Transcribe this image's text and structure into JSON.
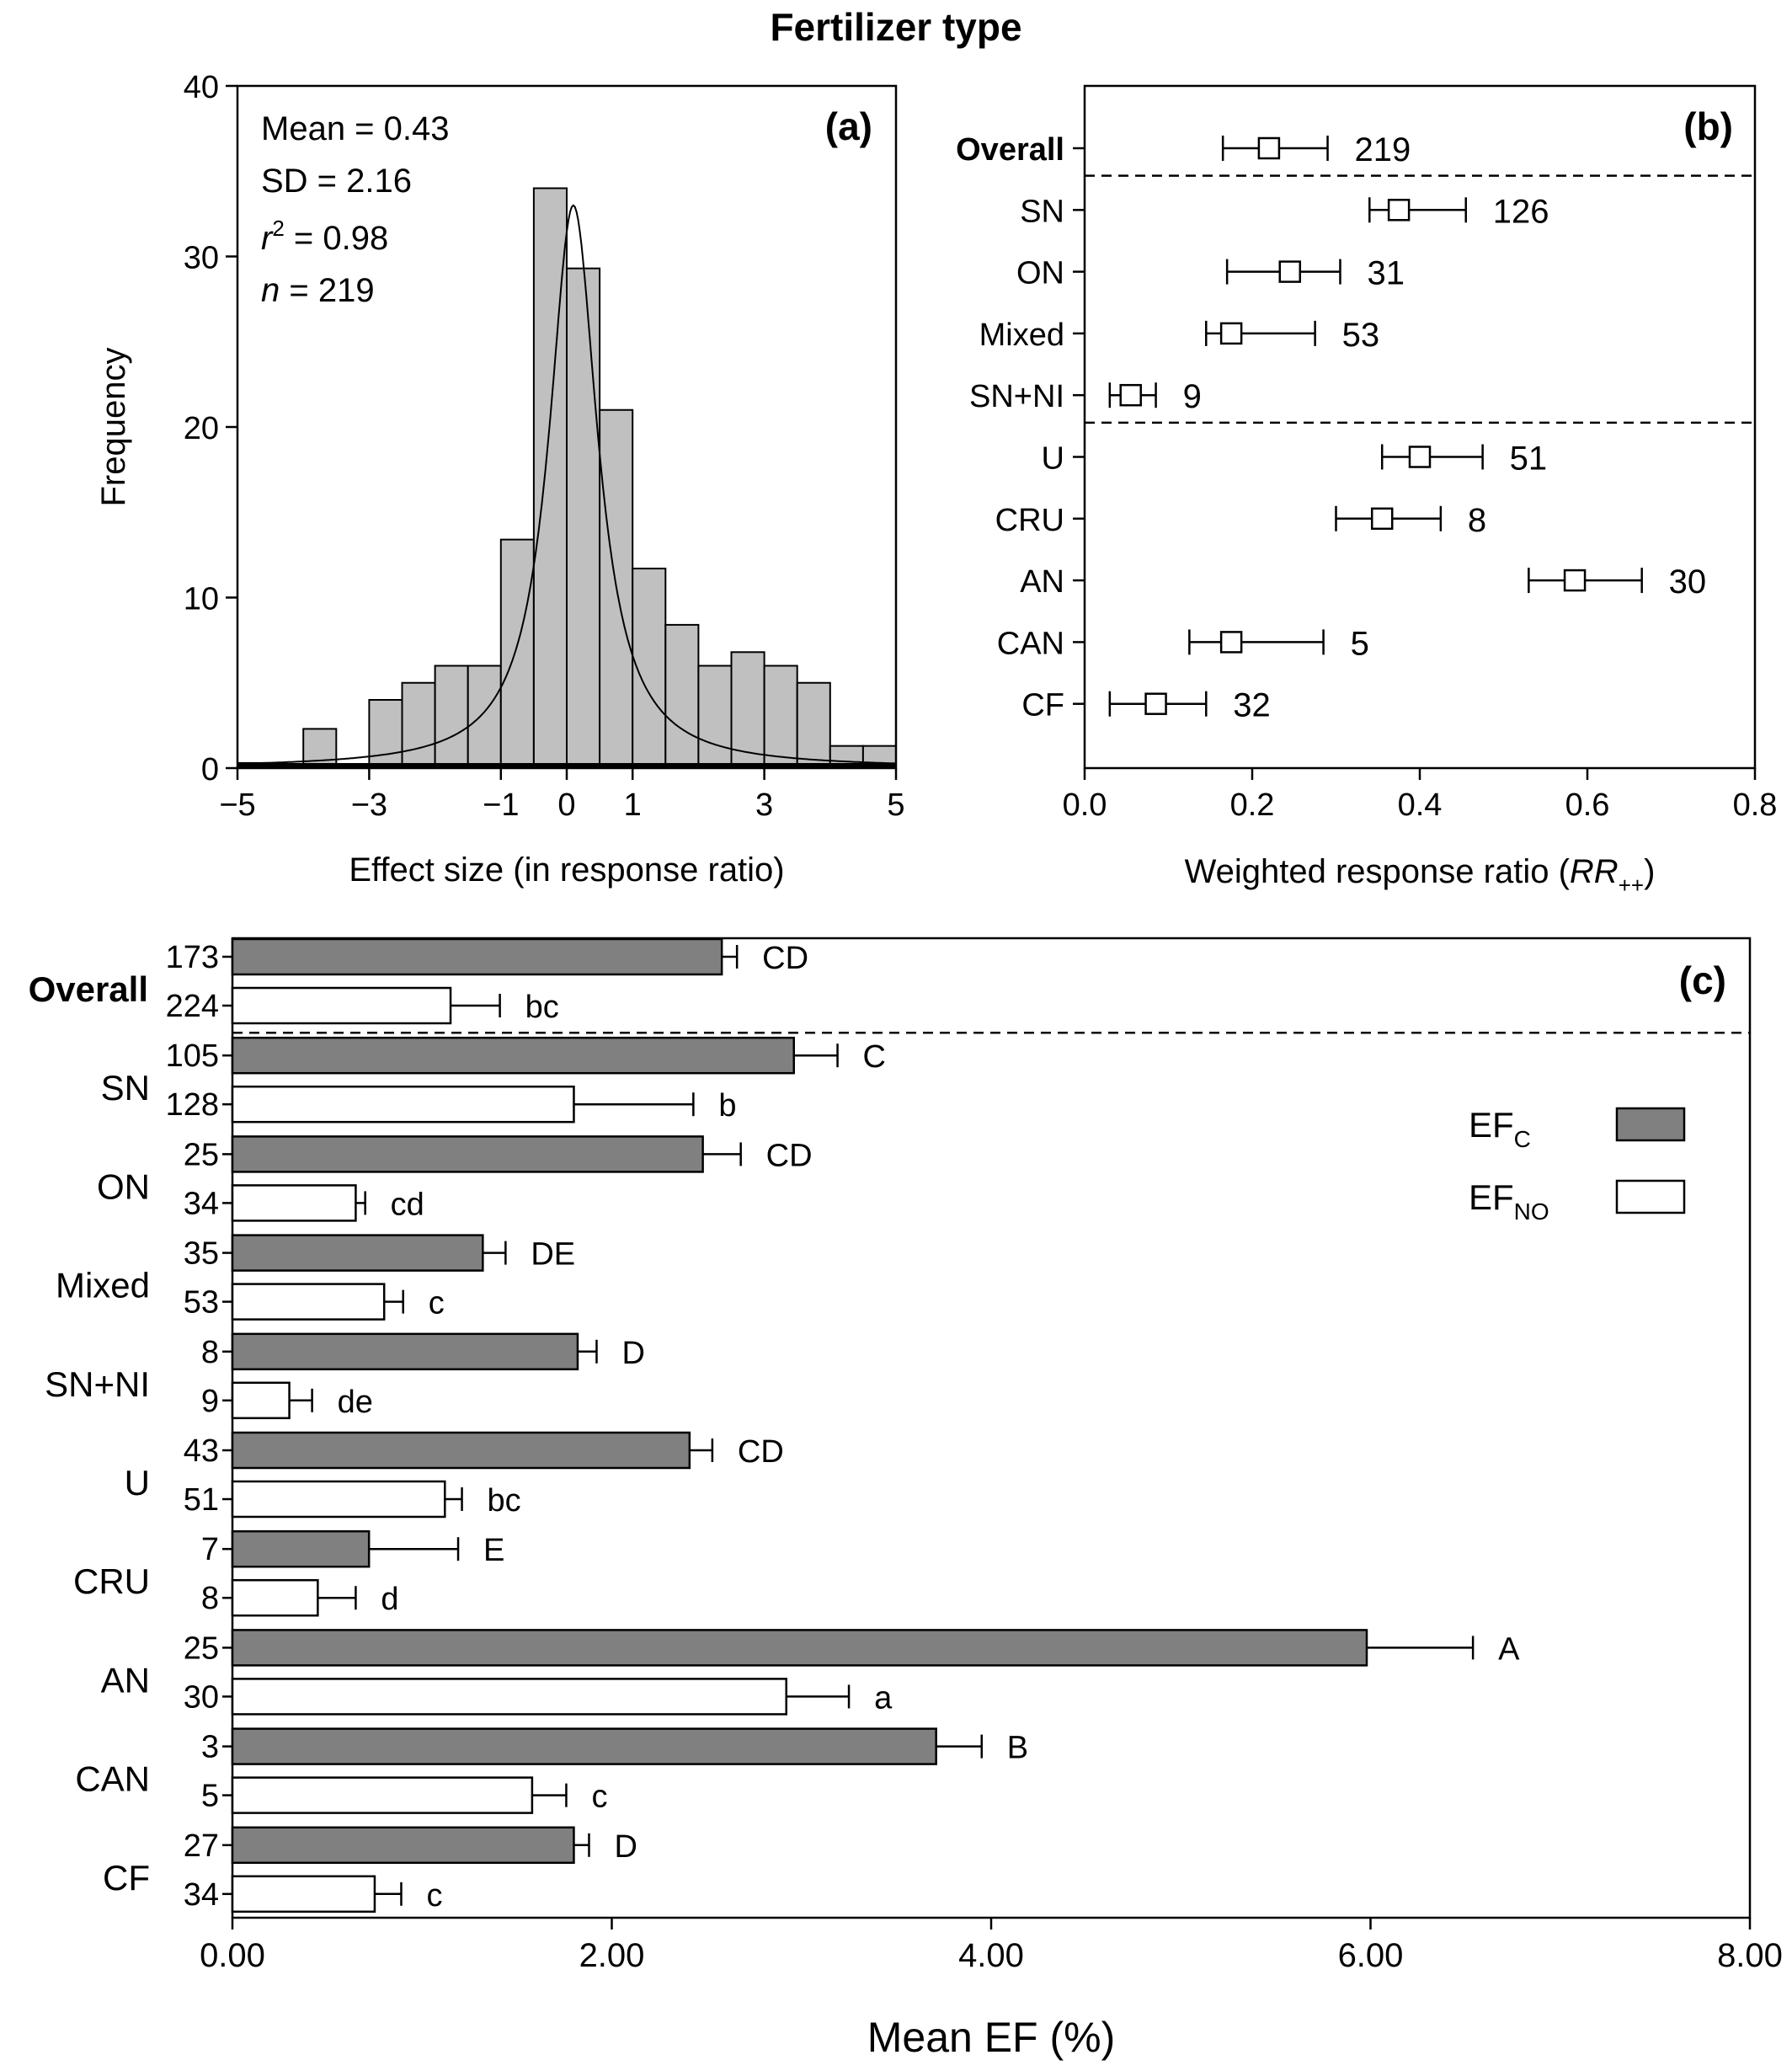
{
  "figure_title": "Fertilizer type",
  "colors": {
    "bar_fill": "#c0c0c0",
    "ef_c_fill": "#808080",
    "ef_no_fill": "#ffffff",
    "line": "#000000"
  },
  "chart_data": [
    {
      "panel": "(a)",
      "type": "bar",
      "subtype": "histogram with fitted curve",
      "xlabel": "Effect size (in response ratio)",
      "ylabel": "Frequency",
      "xlim": [
        -5,
        5
      ],
      "ylim": [
        0,
        40
      ],
      "xticks": [
        "−5",
        "−3",
        "−1",
        "0",
        "1",
        "3",
        "5"
      ],
      "xtick_values": [
        -5,
        -3,
        -1,
        0,
        1,
        3,
        5
      ],
      "yticks": [
        0,
        10,
        20,
        30,
        40
      ],
      "stats": {
        "mean": "Mean = 0.43",
        "sd": "SD = 2.16",
        "r2_prefix": "r",
        "r2_sup": "2",
        "r2_value": " = 0.98",
        "n_prefix": "n",
        "n_value": " = 219"
      },
      "bin_width": 0.5,
      "bin_starts": [
        -5,
        -4.5,
        -4,
        -3.5,
        -3,
        -2.5,
        -2,
        -1.5,
        -1,
        -0.5,
        0,
        0.5,
        1,
        1.5,
        2,
        2.5,
        3,
        3.5,
        4,
        4.5
      ],
      "values": [
        0.3,
        0,
        2.3,
        0,
        4,
        5,
        6,
        6,
        13.4,
        34,
        29.3,
        21,
        11.7,
        8.4,
        6,
        6.8,
        6,
        5,
        1.3,
        1.3
      ],
      "fitted_curve": {
        "center": 0.1,
        "peak": 33,
        "half_width": 0.45
      }
    },
    {
      "panel": "(b)",
      "type": "scatter",
      "subtype": "mean with error bars",
      "xlabel_prefix": "Weighted response ratio (",
      "xlabel_italic": "RR",
      "xlabel_sub": "++",
      "xlabel_suffix": ")",
      "xlim": [
        0,
        0.8
      ],
      "xticks": [
        "0.0",
        "0.2",
        "0.4",
        "0.6",
        "0.8"
      ],
      "xtick_values": [
        0,
        0.2,
        0.4,
        0.6,
        0.8
      ],
      "categories": [
        "Overall",
        "SN",
        "ON",
        "Mixed",
        "SN+NI",
        "U",
        "CRU",
        "AN",
        "CAN",
        "CF"
      ],
      "means": [
        0.22,
        0.375,
        0.245,
        0.175,
        0.055,
        0.4,
        0.355,
        0.585,
        0.175,
        0.085
      ],
      "lower": [
        0.165,
        0.34,
        0.17,
        0.145,
        0.03,
        0.355,
        0.3,
        0.53,
        0.125,
        0.03
      ],
      "upper": [
        0.29,
        0.455,
        0.305,
        0.275,
        0.085,
        0.475,
        0.425,
        0.665,
        0.285,
        0.145
      ],
      "n": [
        "219",
        "126",
        "31",
        "53",
        "9",
        "51",
        "8",
        "30",
        "5",
        "32"
      ],
      "separators_after": [
        "Overall",
        "SN+NI"
      ]
    },
    {
      "panel": "(c)",
      "type": "bar",
      "subtype": "horizontal grouped bars with error bars",
      "xlabel": "Mean EF (%)",
      "xlim": [
        0,
        8
      ],
      "xticks": [
        "0.00",
        "2.00",
        "4.00",
        "6.00",
        "8.00"
      ],
      "xtick_values": [
        0,
        2,
        4,
        6,
        8
      ],
      "categories": [
        "Overall",
        "SN",
        "ON",
        "Mixed",
        "SN+NI",
        "U",
        "CRU",
        "AN",
        "CAN",
        "CF"
      ],
      "legend": [
        {
          "label": "EF",
          "sub": "C",
          "fill": "#808080"
        },
        {
          "label": "EF",
          "sub": "NO",
          "fill": "#ffffff"
        }
      ],
      "series": [
        {
          "name": "EFC",
          "values": [
            2.58,
            2.96,
            2.48,
            1.32,
            1.82,
            2.41,
            0.72,
            5.98,
            3.71,
            1.8
          ],
          "error": [
            0.08,
            0.23,
            0.2,
            0.12,
            0.1,
            0.12,
            0.47,
            0.56,
            0.24,
            0.08
          ],
          "n": [
            "173",
            "105",
            "25",
            "35",
            "8",
            "43",
            "7",
            "25",
            "3",
            "27"
          ],
          "letters": [
            "CD",
            "C",
            "CD",
            "DE",
            "D",
            "CD",
            "E",
            "A",
            "B",
            "D"
          ]
        },
        {
          "name": "EFNO",
          "values": [
            1.15,
            1.8,
            0.65,
            0.8,
            0.3,
            1.12,
            0.45,
            2.92,
            1.58,
            0.75
          ],
          "error": [
            0.26,
            0.63,
            0.05,
            0.1,
            0.12,
            0.09,
            0.2,
            0.33,
            0.18,
            0.14
          ],
          "n": [
            "224",
            "128",
            "34",
            "53",
            "9",
            "51",
            "8",
            "30",
            "5",
            "34"
          ],
          "letters": [
            "bc",
            "b",
            "cd",
            "c",
            "de",
            "bc",
            "d",
            "a",
            "c",
            "c"
          ]
        }
      ],
      "separators_after": [
        "Overall"
      ]
    }
  ]
}
